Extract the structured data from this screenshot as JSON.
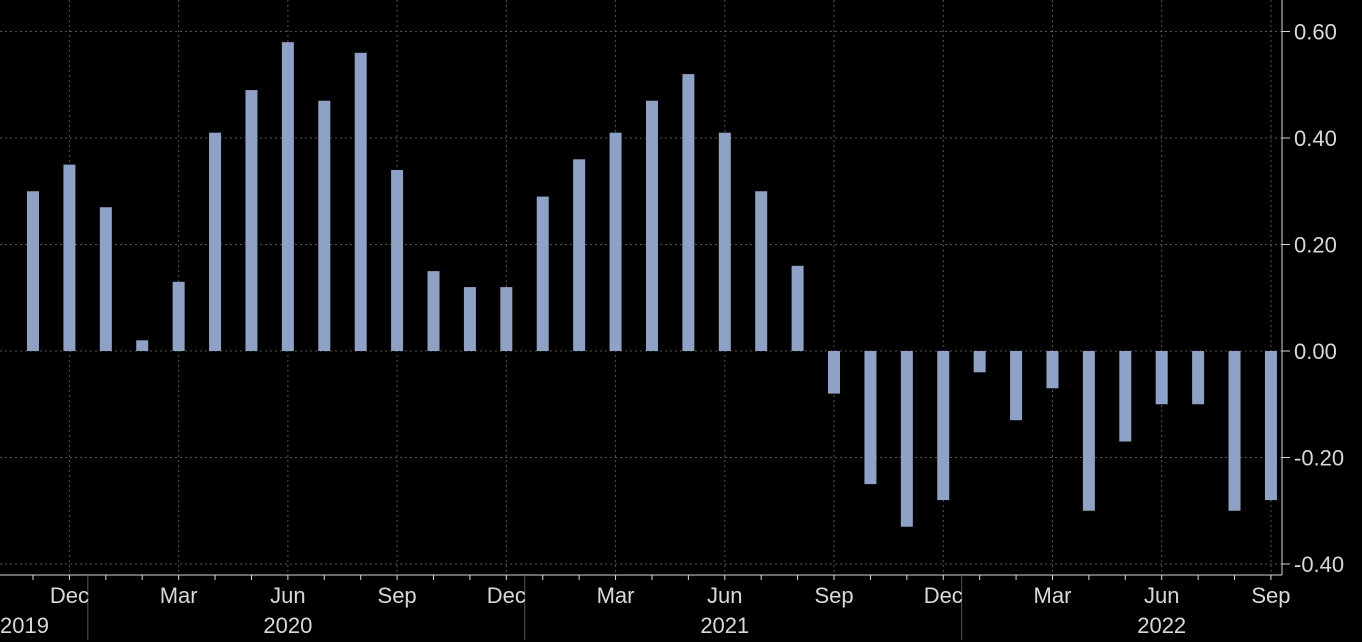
{
  "chart_data": {
    "type": "bar",
    "title": "",
    "xlabel": "",
    "ylabel": "",
    "ylim": [
      -0.43,
      0.66
    ],
    "yticks": [
      {
        "value": 0.6,
        "label": "0.60"
      },
      {
        "value": 0.4,
        "label": "0.40"
      },
      {
        "value": 0.2,
        "label": "0.20"
      },
      {
        "value": 0.0,
        "label": "0.00"
      },
      {
        "value": -0.2,
        "label": "-0.20"
      },
      {
        "value": -0.4,
        "label": "-0.40"
      }
    ],
    "grid": true,
    "y_axis_position": "right",
    "bar_color": "#8fa2c6",
    "background_color": "#000000",
    "grid_color": "#555555",
    "text_color": "#d9d9d9",
    "categories": [
      "Nov 2019",
      "Dec 2019",
      "Jan 2020",
      "Feb 2020",
      "Mar 2020",
      "Apr 2020",
      "May 2020",
      "Jun 2020",
      "Jul 2020",
      "Aug 2020",
      "Sep 2020",
      "Oct 2020",
      "Nov 2020",
      "Dec 2020",
      "Jan 2021",
      "Feb 2021",
      "Mar 2021",
      "Apr 2021",
      "May 2021",
      "Jun 2021",
      "Jul 2021",
      "Aug 2021",
      "Sep 2021",
      "Oct 2021",
      "Nov 2021",
      "Dec 2021",
      "Jan 2022",
      "Feb 2022",
      "Mar 2022",
      "Apr 2022",
      "May 2022",
      "Jun 2022",
      "Jul 2022",
      "Aug 2022",
      "Sep 2022"
    ],
    "values": [
      0.3,
      0.35,
      0.27,
      0.02,
      0.13,
      0.41,
      0.49,
      0.58,
      0.47,
      0.56,
      0.34,
      0.15,
      0.12,
      0.12,
      0.29,
      0.36,
      0.41,
      0.47,
      0.52,
      0.41,
      0.3,
      0.16,
      -0.08,
      -0.25,
      -0.33,
      -0.28,
      -0.04,
      -0.13,
      -0.07,
      -0.3,
      -0.17,
      -0.1,
      -0.1,
      -0.3,
      -0.28
    ],
    "month_ticks": [
      {
        "category": "Dec 2019",
        "label": "Dec"
      },
      {
        "category": "Mar 2020",
        "label": "Mar"
      },
      {
        "category": "Jun 2020",
        "label": "Jun"
      },
      {
        "category": "Sep 2020",
        "label": "Sep"
      },
      {
        "category": "Dec 2020",
        "label": "Dec"
      },
      {
        "category": "Mar 2021",
        "label": "Mar"
      },
      {
        "category": "Jun 2021",
        "label": "Jun"
      },
      {
        "category": "Sep 2021",
        "label": "Sep"
      },
      {
        "category": "Dec 2021",
        "label": "Dec"
      },
      {
        "category": "Mar 2022",
        "label": "Mar"
      },
      {
        "category": "Jun 2022",
        "label": "Jun"
      },
      {
        "category": "Sep 2022",
        "label": "Sep"
      }
    ],
    "year_labels": [
      {
        "label": "2019",
        "anchor_category": "Nov 2019"
      },
      {
        "label": "2020",
        "anchor_category": "Jun 2020"
      },
      {
        "label": "2021",
        "anchor_category": "Jun 2021"
      },
      {
        "label": "2022",
        "anchor_category": "Jun 2022"
      }
    ],
    "year_dividers": [
      "Jan 2020",
      "Jan 2021",
      "Jan 2022"
    ]
  }
}
